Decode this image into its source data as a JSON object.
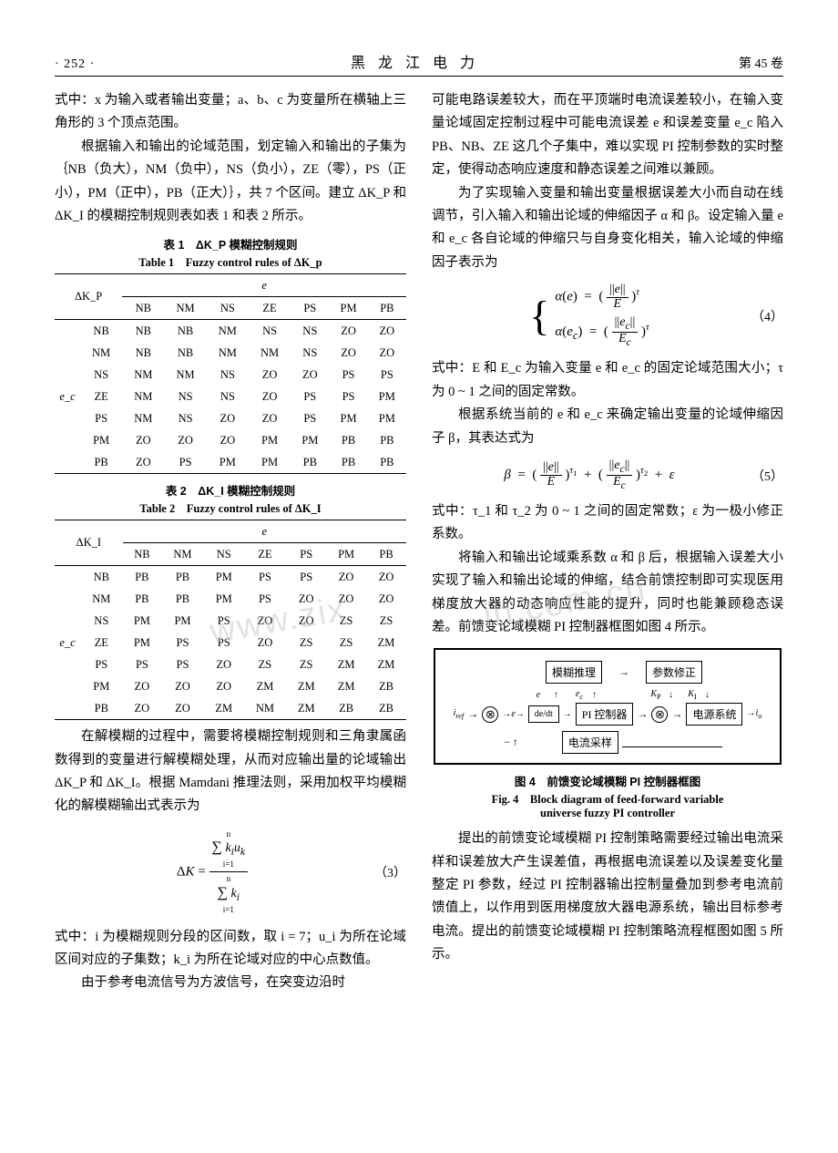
{
  "header": {
    "left": "· 252 ·",
    "center": "黑龙江电力",
    "right": "第 45 卷"
  },
  "col1": {
    "p1": "式中：x 为输入或者输出变量；a、b、c 为变量所在横轴上三角形的 3 个顶点范围。",
    "p2": "根据输入和输出的论域范围，划定输入和输出的子集为｛NB（负大），NM（负中），NS（负小），ZE（零），PS（正小），PM（正中），PB（正大）｝，共 7 个区间。建立 ΔK_P 和 ΔK_I 的模糊控制规则表如表 1 和表 2 所示。",
    "t1_cn": "表 1　ΔK_P 模糊控制规则",
    "t1_en": "Table 1　Fuzzy control rules of ΔK_p",
    "t2_cn": "表 2　ΔK_I 模糊控制规则",
    "t2_en": "Table 2　Fuzzy control rules of ΔK_I",
    "table_row_label": "e_c",
    "table_dk_p": "ΔK_P",
    "table_dk_i": "ΔK_I",
    "table_e": "e",
    "table_cols": [
      "NB",
      "NM",
      "NS",
      "ZE",
      "PS",
      "PM",
      "PB"
    ],
    "table1_rows": [
      [
        "NB",
        "NB",
        "NB",
        "NM",
        "NS",
        "NS",
        "ZO",
        "ZO"
      ],
      [
        "NM",
        "NB",
        "NB",
        "NM",
        "NM",
        "NS",
        "ZO",
        "ZO"
      ],
      [
        "NS",
        "NM",
        "NM",
        "NS",
        "ZO",
        "ZO",
        "PS",
        "PS"
      ],
      [
        "ZE",
        "NM",
        "NS",
        "NS",
        "ZO",
        "PS",
        "PS",
        "PM"
      ],
      [
        "PS",
        "NM",
        "NS",
        "ZO",
        "ZO",
        "PS",
        "PM",
        "PM"
      ],
      [
        "PM",
        "ZO",
        "ZO",
        "ZO",
        "PM",
        "PM",
        "PB",
        "PB"
      ],
      [
        "PB",
        "ZO",
        "PS",
        "PM",
        "PM",
        "PB",
        "PB",
        "PB"
      ]
    ],
    "table2_rows": [
      [
        "NB",
        "PB",
        "PB",
        "PM",
        "PS",
        "PS",
        "ZO",
        "ZO"
      ],
      [
        "NM",
        "PB",
        "PB",
        "PM",
        "PS",
        "ZO",
        "ZO",
        "ZO"
      ],
      [
        "NS",
        "PM",
        "PM",
        "PS",
        "ZO",
        "ZO",
        "ZS",
        "ZS"
      ],
      [
        "ZE",
        "PM",
        "PS",
        "PS",
        "ZO",
        "ZS",
        "ZS",
        "ZM"
      ],
      [
        "PS",
        "PS",
        "PS",
        "ZO",
        "ZS",
        "ZS",
        "ZM",
        "ZM"
      ],
      [
        "PM",
        "ZO",
        "ZO",
        "ZO",
        "ZM",
        "ZM",
        "ZM",
        "ZB"
      ],
      [
        "PB",
        "ZO",
        "ZO",
        "ZM",
        "NM",
        "ZM",
        "ZB",
        "ZB"
      ]
    ],
    "p3": "在解模糊的过程中，需要将模糊控制规则和三角隶属函数得到的变量进行解模糊处理，从而对应输出量的论域输出 ΔK_P 和 ΔK_I。根据 Mamdani 推理法则，采用加权平均模糊化的解模糊输出式表示为",
    "eq3_num": "（3）",
    "p4": "式中：i 为模糊规则分段的区间数，取 i = 7；u_i 为所在论域区间对应的子集数；k_i 为所在论域对应的中心点数值。",
    "p5": "由于参考电流信号为方波信号，在突变边沿时"
  },
  "col2": {
    "p1": "可能电路误差较大，而在平顶端时电流误差较小，在输入变量论域固定控制过程中可能电流误差 e 和误差变量 e_c 陷入 PB、NB、ZE 这几个子集中，难以实现 PI 控制参数的实时整定，使得动态响应速度和静态误差之间难以兼顾。",
    "p2": "为了实现输入变量和输出变量根据误差大小而自动在线调节，引入输入和输出论域的伸缩因子 α 和 β。设定输入量 e 和 e_c 各自论域的伸缩只与自身变化相关，输入论域的伸缩因子表示为",
    "eq4_num": "（4）",
    "p3": "式中：E 和 E_c 为输入变量 e 和 e_c 的固定论域范围大小；τ 为 0 ~ 1 之间的固定常数。",
    "p4": "根据系统当前的 e 和 e_c 来确定输出变量的论域伸缩因子 β，其表达式为",
    "eq5_num": "（5）",
    "p5": "式中：τ_1 和 τ_2 为 0 ~ 1 之间的固定常数；ε 为一极小修正系数。",
    "p6": "将输入和输出论域乘系数 α 和 β 后，根据输入误差大小实现了输入和输出论域的伸缩，结合前馈控制即可实现医用梯度放大器的动态响应性能的提升，同时也能兼顾稳态误差。前馈变论域模糊 PI 控制器框图如图 4 所示。",
    "diagram": {
      "fuzzy_inference": "模糊推理",
      "param_fix": "参数修正",
      "dedt": "de/dt",
      "pi": "PI 控制器",
      "power": "电源系统",
      "current_sample": "电流采样",
      "iref": "i_ref",
      "io": "i_o",
      "e": "e",
      "ec": "e_c",
      "Kp": "K_P",
      "Ki": "K_I"
    },
    "fig4_cn": "图 4　前馈变论域模糊 PI 控制器框图",
    "fig4_en1": "Fig. 4　Block diagram of feed-forward variable",
    "fig4_en2": "universe fuzzy PI controller",
    "p7": "提出的前馈变论域模糊 PI 控制策略需要经过输出电流采样和误差放大产生误差值，再根据电流误差以及误差变化量整定 PI 参数，经过 PI 控制器输出控制量叠加到参考电流前馈值上，以作用到医用梯度放大器电源系统，输出目标参考电流。提出的前馈变论域模糊 PI 控制策略流程框图如图 5 所示。"
  },
  "watermark1": "www.zix",
  "watermark2": "in.com.cn"
}
